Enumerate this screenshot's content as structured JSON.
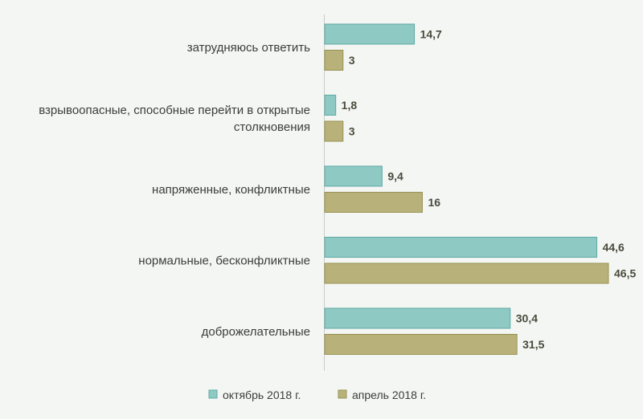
{
  "chart_data": {
    "type": "bar",
    "orientation": "horizontal",
    "title": "",
    "xlabel": "",
    "ylabel": "",
    "xlim": [
      0,
      48
    ],
    "grid": false,
    "legend_position": "bottom",
    "categories": [
      [
        "затрудняюсь ответить"
      ],
      [
        "взрывоопасные, способные перейти в открытые",
        "столкновения"
      ],
      [
        "напряженные, конфликтные"
      ],
      [
        "нормальные, бесконфликтные"
      ],
      [
        "доброжелательные"
      ]
    ],
    "series": [
      {
        "name": "октябрь 2018 г.",
        "color": "#8ec9c4",
        "stroke": "#5fa9a3",
        "values": [
          14.7,
          1.8,
          9.4,
          44.6,
          30.4
        ],
        "labels": [
          "14,7",
          "1,8",
          "9,4",
          "44,6",
          "30,4"
        ]
      },
      {
        "name": "апрель 2018 г.",
        "color": "#b8b27a",
        "stroke": "#989253",
        "values": [
          3,
          3,
          16,
          46.5,
          31.5
        ],
        "labels": [
          "3",
          "3",
          "16",
          "46,5",
          "31,5"
        ]
      }
    ]
  }
}
